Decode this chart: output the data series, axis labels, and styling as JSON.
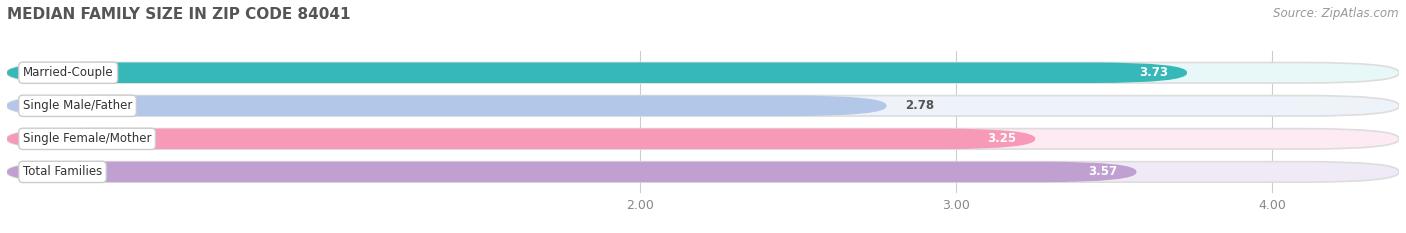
{
  "title": "MEDIAN FAMILY SIZE IN ZIP CODE 84041",
  "source": "Source: ZipAtlas.com",
  "categories": [
    "Married-Couple",
    "Single Male/Father",
    "Single Female/Mother",
    "Total Families"
  ],
  "values": [
    3.73,
    2.78,
    3.25,
    3.57
  ],
  "bar_colors": [
    "#36b8b8",
    "#b3c8e8",
    "#f79ab8",
    "#c0a0d0"
  ],
  "bar_bg_colors": [
    "#e8f7f7",
    "#eef2f9",
    "#fdeaf2",
    "#f0eaf6"
  ],
  "xlim": [
    0.0,
    4.4
  ],
  "x_axis_start": 0.0,
  "xticks": [
    2.0,
    3.0,
    4.0
  ],
  "xtick_labels": [
    "2.00",
    "3.00",
    "4.00"
  ],
  "title_fontsize": 11,
  "label_fontsize": 8.5,
  "value_fontsize": 8.5,
  "tick_fontsize": 9,
  "source_fontsize": 8.5,
  "background_color": "#ffffff"
}
